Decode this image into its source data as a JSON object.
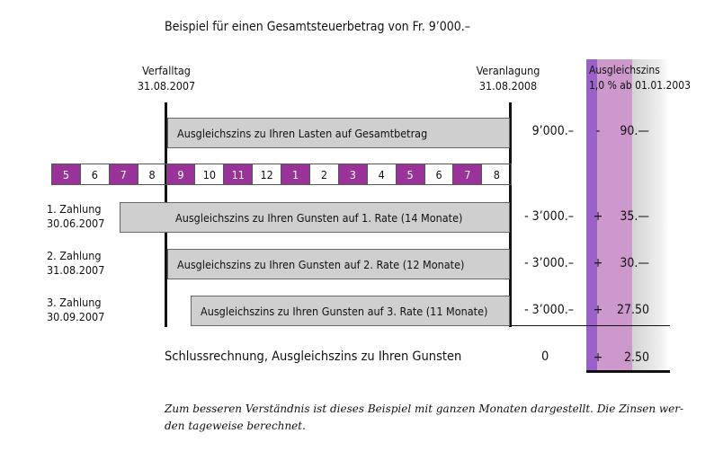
{
  "title": "Beispiel für einen Gesamtsteuerbetrag von Fr. 9’000.–",
  "headers": {
    "verfalltag_label": "Verfalltag",
    "verfalltag_date": "31.08.2007",
    "veranlagung_label": "Veranlagung",
    "veranlagung_date": "31.08.2008",
    "zins_label": "Ausgleichszins",
    "zins_rate": "1,0 % ab 01.01.2003"
  },
  "months": [
    {
      "label": "5",
      "highlight": true
    },
    {
      "label": "6",
      "highlight": false
    },
    {
      "label": "7",
      "highlight": true
    },
    {
      "label": "8",
      "highlight": false
    },
    {
      "label": "9",
      "highlight": true
    },
    {
      "label": "10",
      "highlight": false
    },
    {
      "label": "11",
      "highlight": true
    },
    {
      "label": "12",
      "highlight": false
    },
    {
      "label": "1",
      "highlight": true
    },
    {
      "label": "2",
      "highlight": false
    },
    {
      "label": "3",
      "highlight": true
    },
    {
      "label": "4",
      "highlight": false
    },
    {
      "label": "5",
      "highlight": true
    },
    {
      "label": "6",
      "highlight": false
    },
    {
      "label": "7",
      "highlight": true
    },
    {
      "label": "8",
      "highlight": false
    }
  ],
  "rows": [
    {
      "payment": "",
      "date": "",
      "bar": "Ausgleichszins zu Ihren Lasten auf Gesamtbetrag",
      "amount": "9’000.–",
      "sign": "-",
      "interest": "90.—"
    },
    {
      "payment": "1. Zahlung",
      "date": "30.06.2007",
      "bar": "Ausgleichszins zu Ihren Gunsten auf 1. Rate (14 Monate)",
      "amount": "- 3’000.–",
      "sign": "+",
      "interest": "35.—"
    },
    {
      "payment": "2. Zahlung",
      "date": "31.08.2007",
      "bar": "Ausgleichszins zu Ihren Gunsten auf 2. Rate (12 Monate)",
      "amount": "- 3’000.–",
      "sign": "+",
      "interest": "30.—"
    },
    {
      "payment": "3. Zahlung",
      "date": "30.09.2007",
      "bar": "Ausgleichszins zu Ihren Gunsten auf 3. Rate (11 Monate)",
      "amount": "- 3’000.–",
      "sign": "+",
      "interest": "27.50"
    }
  ],
  "summary": {
    "label": "Schlussrechnung, Ausgleichszins zu Ihren Gunsten",
    "amount": "0",
    "sign": "+",
    "interest": "2.50"
  },
  "note": "Zum besseren Verständnis ist dieses Beispiel mit ganzen Monaten dargestellt. Die Zinsen wer-den tageweise berechnet.",
  "colors": {
    "month_highlight": "#99339a",
    "bar_fill": "#cfcfcf",
    "zins_dark": "#9a62c8",
    "zins_light": "#cd98cc"
  }
}
